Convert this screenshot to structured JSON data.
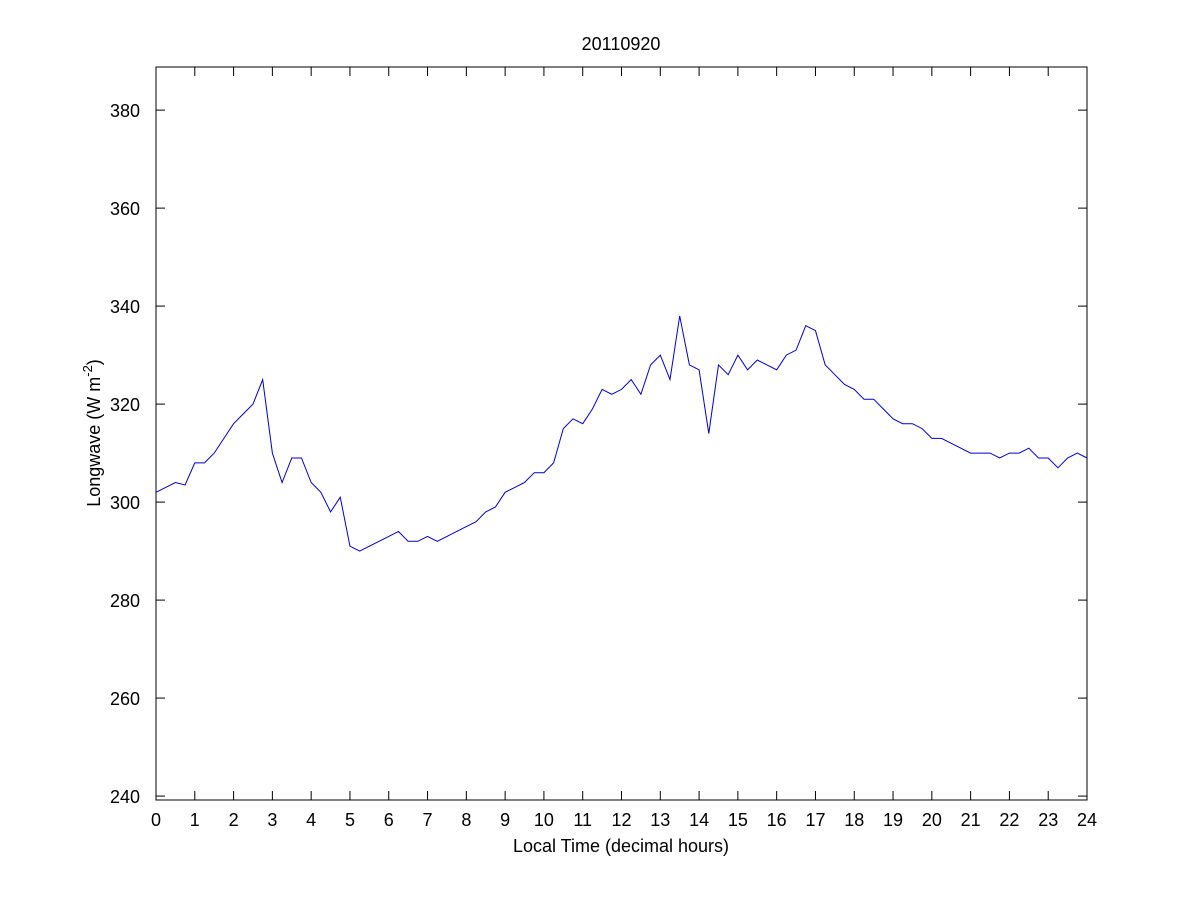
{
  "chart_data": {
    "type": "line",
    "title": "20110920",
    "x_label": "Local Time (decimal hours)",
    "y_label": {
      "text": "Longwave (W m",
      "superscript": "-2",
      "suffix": ")"
    },
    "xlim": [
      0,
      24
    ],
    "ylim": [
      239.2,
      388.8
    ],
    "xticks": [
      0,
      1,
      2,
      3,
      4,
      5,
      6,
      7,
      8,
      9,
      10,
      11,
      12,
      13,
      14,
      15,
      16,
      17,
      18,
      19,
      20,
      21,
      22,
      23,
      24
    ],
    "yticks": [
      240,
      260,
      280,
      300,
      320,
      340,
      360,
      380
    ],
    "x": [
      0,
      0.25,
      0.5,
      0.75,
      1,
      1.25,
      1.5,
      1.75,
      2,
      2.25,
      2.5,
      2.75,
      3,
      3.25,
      3.5,
      3.75,
      4,
      4.25,
      4.5,
      4.75,
      5,
      5.25,
      5.5,
      5.75,
      6,
      6.25,
      6.5,
      6.75,
      7,
      7.25,
      7.5,
      7.75,
      8,
      8.25,
      8.5,
      8.75,
      9,
      9.25,
      9.5,
      9.75,
      10,
      10.25,
      10.5,
      10.75,
      11,
      11.25,
      11.5,
      11.75,
      12,
      12.25,
      12.5,
      12.75,
      13,
      13.25,
      13.5,
      13.75,
      14,
      14.25,
      14.5,
      14.75,
      15,
      15.25,
      15.5,
      15.75,
      16,
      16.25,
      16.5,
      16.75,
      17,
      17.25,
      17.5,
      17.75,
      18,
      18.25,
      18.5,
      18.75,
      19,
      19.25,
      19.5,
      19.75,
      20,
      20.25,
      20.5,
      20.75,
      21,
      21.25,
      21.5,
      21.75,
      22,
      22.25,
      22.5,
      22.75,
      23,
      23.25,
      23.5,
      23.75,
      24
    ],
    "series": [
      {
        "color": "#0000cc",
        "values": [
          302,
          303,
          304,
          303.5,
          308,
          308,
          310,
          313,
          316,
          318,
          320,
          325,
          310,
          304,
          309,
          309,
          304,
          302,
          298,
          301,
          291,
          290,
          291,
          292,
          293,
          294,
          292,
          292,
          293,
          292,
          293,
          294,
          295,
          296,
          298,
          299,
          302,
          303,
          304,
          306,
          306,
          308,
          315,
          317,
          316,
          319,
          323,
          322,
          323,
          325,
          322,
          328,
          330,
          325,
          338,
          328,
          327,
          314,
          328,
          326,
          330,
          327,
          329,
          328,
          327,
          330,
          331,
          336,
          335,
          328,
          326,
          324,
          323,
          321,
          321,
          319,
          317,
          316,
          316,
          315,
          313,
          313,
          312,
          311,
          310,
          310,
          310,
          309,
          310,
          310,
          311,
          309,
          309,
          307,
          309,
          310,
          309
        ]
      }
    ]
  }
}
